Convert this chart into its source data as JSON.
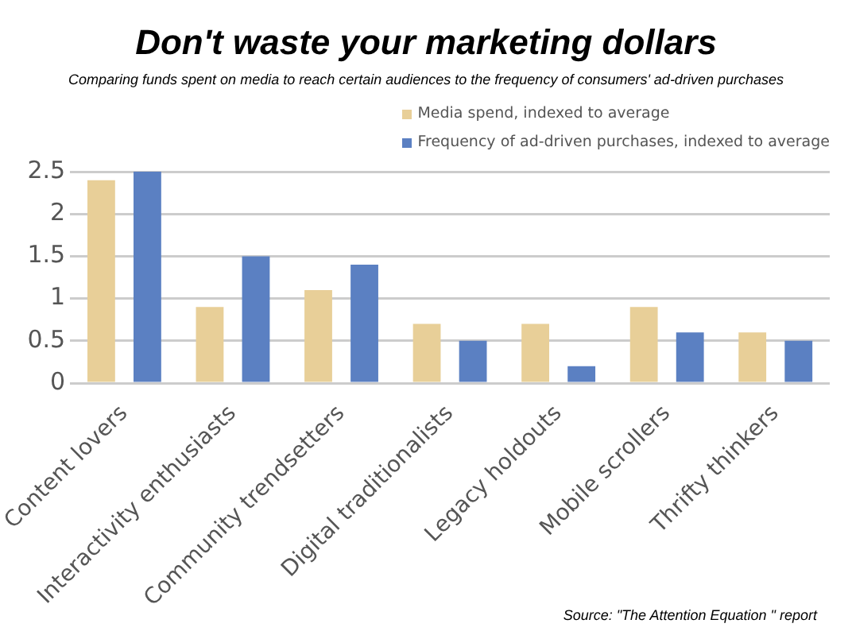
{
  "chart_data": {
    "type": "bar",
    "title": "Don't waste your marketing dollars",
    "subtitle": "Comparing funds spent on media to reach certain audiences to the frequency of consumers' ad-driven purchases",
    "categories": [
      "Content lovers",
      "Interactivity enthusiasts",
      "Community trendsetters",
      "Digital traditionalists",
      "Legacy holdouts",
      "Mobile scrollers",
      "Thrifty thinkers"
    ],
    "series": [
      {
        "name": "Media spend, indexed to average",
        "color": "#e8cf98",
        "values": [
          2.4,
          0.9,
          1.1,
          0.7,
          0.7,
          0.9,
          0.6
        ]
      },
      {
        "name": "Frequency of ad-driven purchases, indexed to average",
        "color": "#5b80c2",
        "values": [
          2.5,
          1.5,
          1.4,
          0.5,
          0.2,
          0.6,
          0.5
        ]
      }
    ],
    "ylim": [
      0,
      2.5
    ],
    "yticks": [
      0,
      0.5,
      1,
      1.5,
      2,
      2.5
    ],
    "grid": "y",
    "legend": "top right",
    "annotations": [
      "Source: \"The Attention Equation \" report"
    ]
  }
}
